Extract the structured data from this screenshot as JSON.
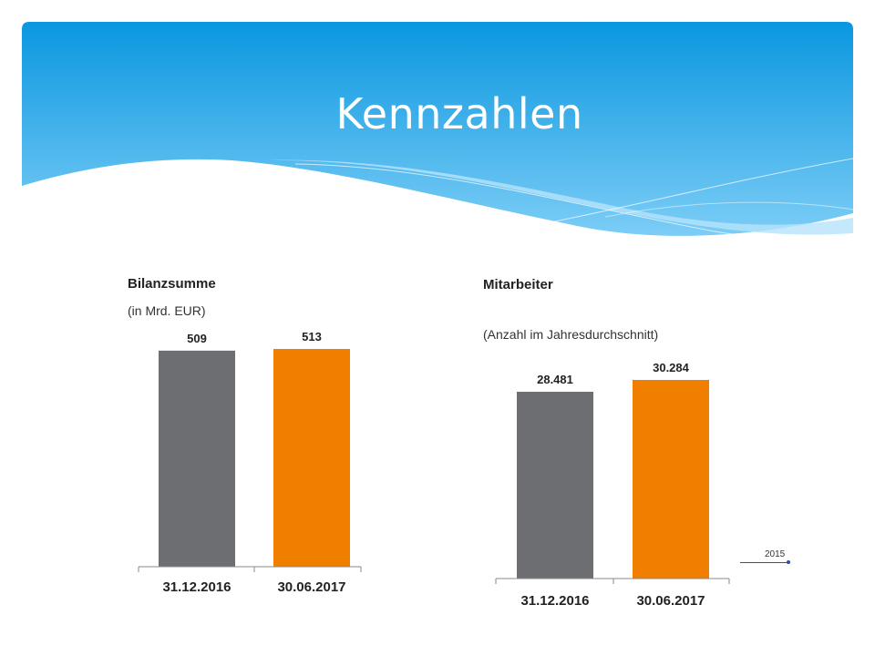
{
  "slide": {
    "title": "Kennzahlen",
    "header_colors": {
      "top": "#0a97e0",
      "bottom": "#7ccdf6",
      "wave": "#b7e3fb"
    }
  },
  "chart_data": [
    {
      "type": "bar",
      "title": "Bilanzsumme",
      "subtitle": "(in Mrd. EUR)",
      "categories": [
        "31.12.2016",
        "30.06.2017"
      ],
      "values": [
        509,
        513
      ],
      "value_labels": [
        "509",
        "513"
      ],
      "colors": [
        "#6d6e71",
        "#f07f00"
      ],
      "ylim": [
        0,
        513
      ]
    },
    {
      "type": "bar",
      "title": "Mitarbeiter",
      "subtitle": "(Anzahl im Jahresdurchschnitt)",
      "categories": [
        "31.12.2016",
        "30.06.2017"
      ],
      "values": [
        28481,
        30284
      ],
      "value_labels": [
        "28.481",
        "30.284"
      ],
      "colors": [
        "#6d6e71",
        "#f07f00"
      ],
      "ylim": [
        0,
        30284
      ]
    }
  ],
  "annotation": {
    "label": "2015",
    "color": "#2b4ea8"
  }
}
